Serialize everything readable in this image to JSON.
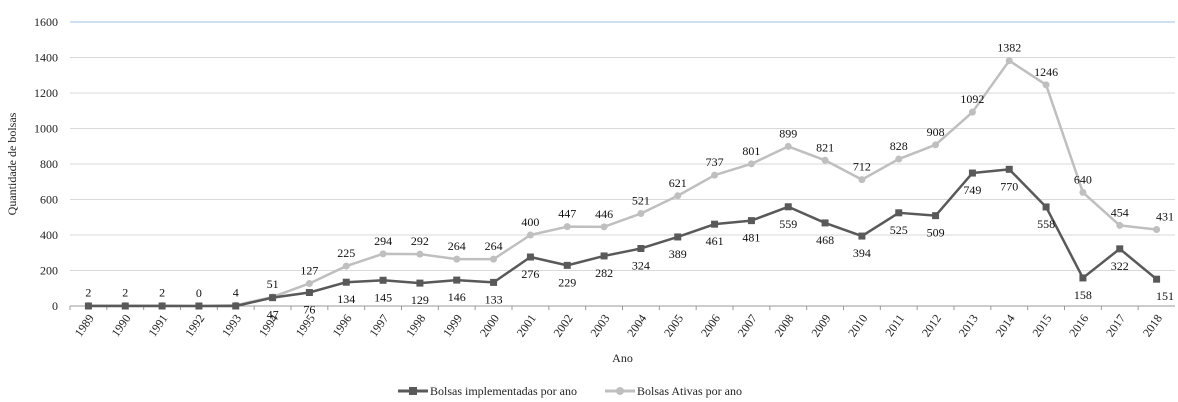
{
  "chart_data": {
    "type": "line",
    "xlabel": "Ano",
    "ylabel": "Quantidade de bolsas",
    "ylim": [
      0,
      1600
    ],
    "yticks": [
      "0",
      "200",
      "400",
      "600",
      "800",
      "1000",
      "1200",
      "1400",
      "1600"
    ],
    "grid": "horizontal",
    "legend_position": "bottom",
    "categories": [
      "1989",
      "1990",
      "1991",
      "1992",
      "1993",
      "1994",
      "1995",
      "1996",
      "1997",
      "1998",
      "1999",
      "2000",
      "2001",
      "2002",
      "2003",
      "2004",
      "2005",
      "2006",
      "2007",
      "2008",
      "2009",
      "2010",
      "2011",
      "2012",
      "2013",
      "2014",
      "2015",
      "2016",
      "2017",
      "2018"
    ],
    "series": [
      {
        "name": "Bolsas implementadas por ano",
        "color": "#595959",
        "marker": "square",
        "values": [
          0,
          0,
          0,
          0,
          0,
          47,
          76,
          134,
          145,
          129,
          146,
          133,
          276,
          229,
          282,
          324,
          389,
          461,
          481,
          559,
          468,
          394,
          525,
          509,
          749,
          770,
          558,
          158,
          322,
          151
        ],
        "labels": [
          "",
          "",
          "",
          "",
          "",
          "47",
          "76",
          "134",
          "145",
          "129",
          "146",
          "133",
          "276",
          "229",
          "282",
          "324",
          "389",
          "461",
          "481",
          "559",
          "468",
          "394",
          "525",
          "509",
          "749",
          "770",
          "558",
          "158",
          "322",
          "151"
        ]
      },
      {
        "name": "Bolsas Ativas por ano",
        "color": "#bfbfbf",
        "marker": "circle",
        "values": [
          2,
          2,
          2,
          0,
          4,
          51,
          127,
          225,
          294,
          292,
          264,
          264,
          400,
          447,
          446,
          521,
          621,
          737,
          801,
          899,
          821,
          712,
          828,
          908,
          1092,
          1382,
          1246,
          640,
          454,
          431
        ],
        "labels": [
          "2",
          "2",
          "2",
          "0",
          "4",
          "51",
          "127",
          "225",
          "294",
          "292",
          "264",
          "264",
          "400",
          "447",
          "446",
          "521",
          "621",
          "737",
          "801",
          "899",
          "821",
          "712",
          "828",
          "908",
          "1092",
          "1382",
          "1246",
          "640",
          "454",
          "431"
        ]
      }
    ]
  }
}
